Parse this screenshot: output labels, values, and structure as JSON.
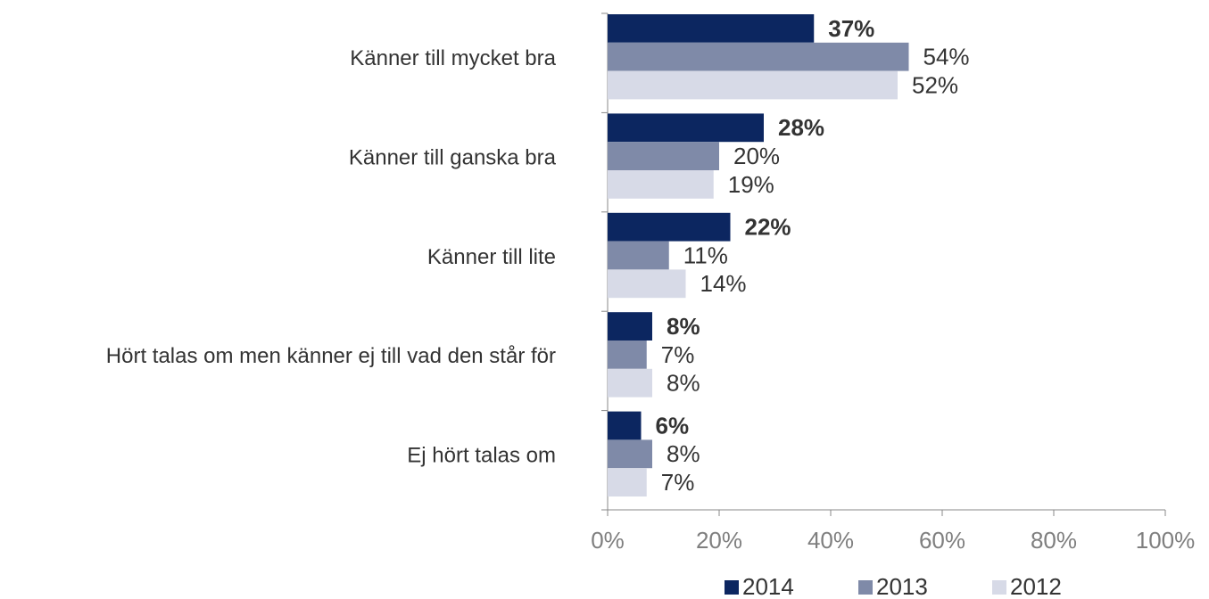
{
  "chart_data": {
    "type": "barh",
    "categories": [
      "Känner till mycket bra",
      "Känner till ganska bra",
      "Känner till lite",
      "Hört talas om men känner ej till vad den står för",
      "Ej hört talas om"
    ],
    "series": [
      {
        "name": "2014",
        "color": "#0c2660",
        "values": [
          37,
          28,
          22,
          8,
          6
        ],
        "value_labels": [
          "37%",
          "28%",
          "22%",
          "8%",
          "6%"
        ]
      },
      {
        "name": "2013",
        "color": "#7f8aa8",
        "values": [
          54,
          20,
          11,
          7,
          8
        ],
        "value_labels": [
          "54%",
          "20%",
          "11%",
          "7%",
          "8%"
        ]
      },
      {
        "name": "2012",
        "color": "#d7dae7",
        "values": [
          52,
          19,
          14,
          8,
          7
        ],
        "value_labels": [
          "52%",
          "19%",
          "14%",
          "8%",
          "7%"
        ]
      }
    ],
    "xlim": [
      0,
      100
    ],
    "xticks": [
      {
        "value": 0,
        "label": "0%"
      },
      {
        "value": 20,
        "label": "20%"
      },
      {
        "value": 40,
        "label": "40%"
      },
      {
        "value": 60,
        "label": "60%"
      },
      {
        "value": 80,
        "label": "80%"
      },
      {
        "value": 100,
        "label": "100%"
      }
    ],
    "legend": "bottom"
  }
}
